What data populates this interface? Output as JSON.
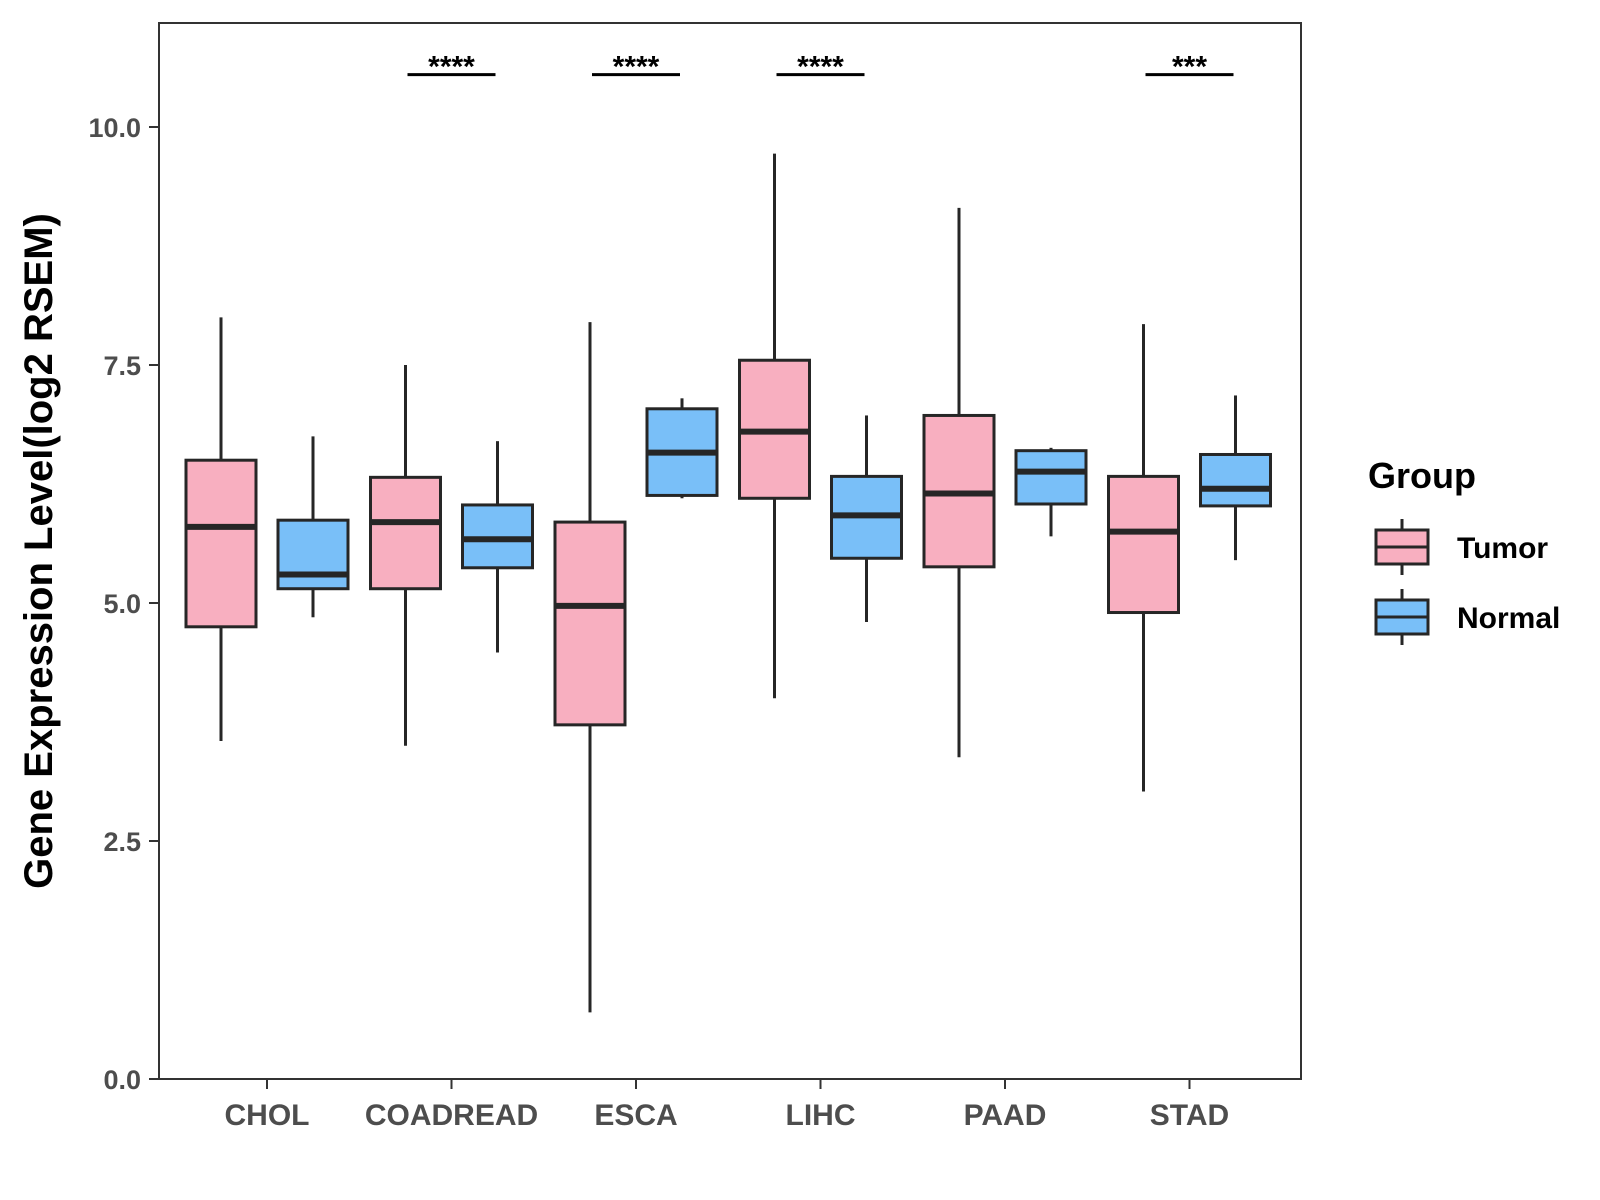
{
  "chart_data": {
    "type": "boxplot",
    "title": "",
    "xlabel": "",
    "ylabel": "Gene Expression Level(log2 RSEM)",
    "ylim": [
      0,
      11.2
    ],
    "yticks": [
      0,
      2.5,
      5,
      7.5,
      10
    ],
    "ytick_labels": [
      "0.0",
      "2.5",
      "5.0",
      "7.5",
      "10.0"
    ],
    "categories": [
      "CHOL",
      "COADREAD",
      "ESCA",
      "LIHC",
      "PAAD",
      "STAD"
    ],
    "legend": {
      "title": "Group",
      "position": "right",
      "entries": [
        {
          "name": "Tumor",
          "color": "#F8AFC0"
        },
        {
          "name": "Normal",
          "color": "#79BFF8"
        }
      ]
    },
    "series": [
      {
        "name": "Tumor",
        "color": "#F8AFC0",
        "boxes": [
          {
            "category": "CHOL",
            "min": 3.55,
            "q1": 4.75,
            "median": 5.8,
            "q3": 6.5,
            "max": 8.0
          },
          {
            "category": "COADREAD",
            "min": 3.5,
            "q1": 5.15,
            "median": 5.85,
            "q3": 6.32,
            "max": 7.5
          },
          {
            "category": "ESCA",
            "min": 0.7,
            "q1": 3.72,
            "median": 4.97,
            "q3": 5.85,
            "max": 7.95
          },
          {
            "category": "LIHC",
            "min": 4.0,
            "q1": 6.1,
            "median": 6.8,
            "q3": 7.55,
            "max": 9.72
          },
          {
            "category": "PAAD",
            "min": 3.38,
            "q1": 5.38,
            "median": 6.15,
            "q3": 6.97,
            "max": 9.15
          },
          {
            "category": "STAD",
            "min": 3.02,
            "q1": 4.9,
            "median": 5.75,
            "q3": 6.33,
            "max": 7.93
          }
        ]
      },
      {
        "name": "Normal",
        "color": "#79BFF8",
        "boxes": [
          {
            "category": "CHOL",
            "min": 4.85,
            "q1": 5.15,
            "median": 5.3,
            "q3": 5.87,
            "max": 6.75
          },
          {
            "category": "COADREAD",
            "min": 4.48,
            "q1": 5.37,
            "median": 5.67,
            "q3": 6.03,
            "max": 6.7
          },
          {
            "category": "ESCA",
            "min": 6.1,
            "q1": 6.13,
            "median": 6.58,
            "q3": 7.04,
            "max": 7.15
          },
          {
            "category": "LIHC",
            "min": 4.8,
            "q1": 5.47,
            "median": 5.92,
            "q3": 6.33,
            "max": 6.97
          },
          {
            "category": "PAAD",
            "min": 5.7,
            "q1": 6.04,
            "median": 6.38,
            "q3": 6.6,
            "max": 6.63
          },
          {
            "category": "STAD",
            "min": 5.45,
            "q1": 6.02,
            "median": 6.2,
            "q3": 6.56,
            "max": 7.18
          }
        ]
      }
    ],
    "significance": [
      {
        "category": "COADREAD",
        "label": "****",
        "y": 10.55
      },
      {
        "category": "ESCA",
        "label": "****",
        "y": 10.55
      },
      {
        "category": "LIHC",
        "label": "****",
        "y": 10.55
      },
      {
        "category": "STAD",
        "label": "***",
        "y": 10.55
      }
    ]
  }
}
